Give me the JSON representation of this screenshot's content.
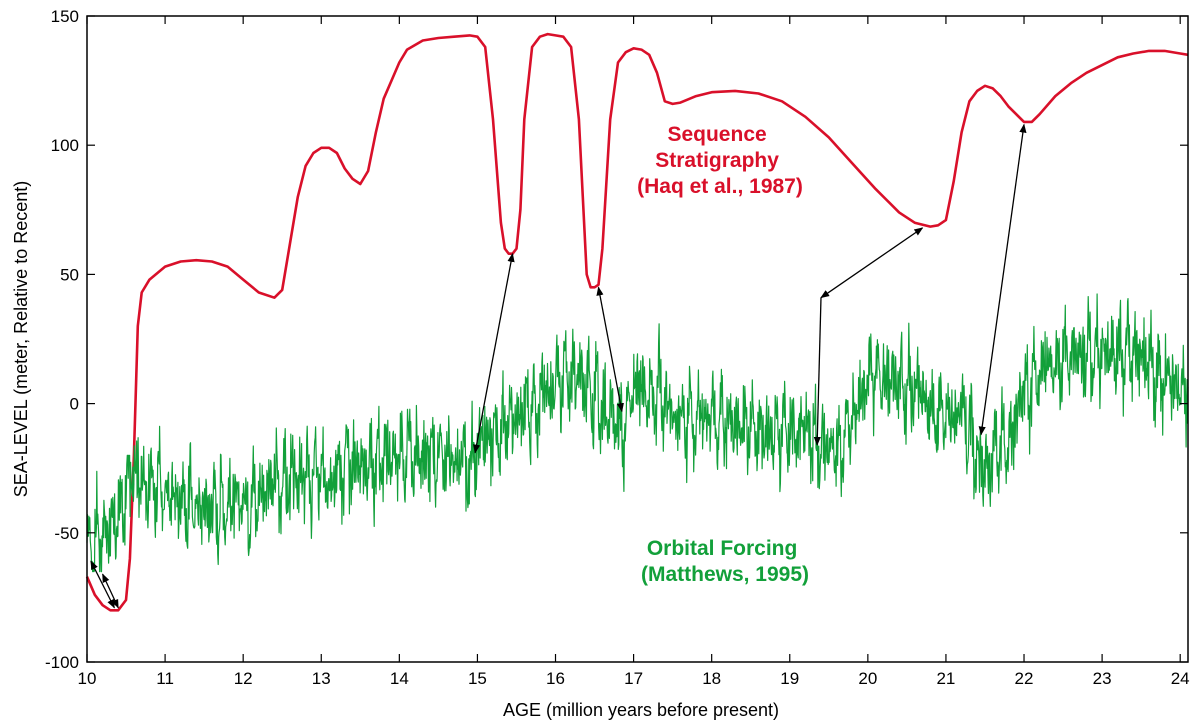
{
  "chart_data": {
    "type": "line",
    "title": "",
    "xlabel": "AGE (million years before present)",
    "ylabel": "SEA-LEVEL  (meter, Relative to Recent)",
    "xlim": [
      10,
      24.1
    ],
    "ylim": [
      -100,
      150
    ],
    "x_ticks": [
      10,
      11,
      12,
      13,
      14,
      15,
      16,
      17,
      18,
      19,
      20,
      21,
      22,
      23,
      24
    ],
    "y_ticks": [
      -100,
      -50,
      0,
      50,
      100,
      150
    ],
    "grid": false,
    "series": [
      {
        "name": "Sequence Stratigraphy (Haq et al., 1987)",
        "label_lines": [
          "Sequence",
          "Stratigraphy",
          "(Haq et al., 1987)"
        ],
        "color": "#d9102a",
        "x": [
          10.0,
          10.1,
          10.2,
          10.3,
          10.4,
          10.5,
          10.55,
          10.6,
          10.65,
          10.7,
          10.8,
          11.0,
          11.2,
          11.4,
          11.6,
          11.8,
          12.0,
          12.2,
          12.4,
          12.5,
          12.6,
          12.7,
          12.8,
          12.9,
          13.0,
          13.1,
          13.2,
          13.3,
          13.4,
          13.5,
          13.6,
          13.7,
          13.8,
          13.9,
          14.0,
          14.1,
          14.3,
          14.5,
          14.7,
          14.9,
          15.0,
          15.1,
          15.2,
          15.3,
          15.35,
          15.4,
          15.45,
          15.5,
          15.55,
          15.6,
          15.7,
          15.8,
          15.9,
          16.0,
          16.1,
          16.2,
          16.3,
          16.35,
          16.4,
          16.45,
          16.5,
          16.55,
          16.6,
          16.7,
          16.8,
          16.9,
          17.0,
          17.1,
          17.2,
          17.3,
          17.4,
          17.5,
          17.6,
          17.8,
          18.0,
          18.3,
          18.6,
          18.9,
          19.2,
          19.5,
          19.8,
          20.1,
          20.4,
          20.6,
          20.8,
          20.9,
          21.0,
          21.1,
          21.2,
          21.3,
          21.4,
          21.5,
          21.6,
          21.7,
          21.8,
          21.9,
          22.0,
          22.1,
          22.2,
          22.4,
          22.6,
          22.8,
          23.0,
          23.2,
          23.4,
          23.6,
          23.8,
          24.0,
          24.1
        ],
        "y": [
          -67,
          -74,
          -78,
          -80,
          -80,
          -76,
          -60,
          -20,
          30,
          43,
          48,
          53,
          55,
          55.5,
          55,
          53,
          48,
          43,
          41,
          44,
          62,
          80,
          92,
          97,
          99,
          99,
          97,
          91,
          87,
          85,
          90,
          105,
          118,
          125,
          132,
          137,
          140.5,
          141.5,
          142,
          142.5,
          142,
          138,
          110,
          70,
          60,
          58,
          58,
          60,
          75,
          110,
          138,
          142,
          143,
          142.5,
          142,
          138,
          110,
          80,
          50,
          45,
          45,
          46,
          60,
          110,
          132,
          136,
          137.5,
          137,
          135,
          128,
          117,
          116,
          116.5,
          119,
          120.5,
          121,
          120,
          117,
          111,
          103,
          93,
          83,
          74,
          70,
          68.5,
          69,
          71,
          86,
          105,
          117,
          121,
          123,
          122,
          119,
          115,
          112,
          109,
          109,
          112,
          119,
          124,
          128,
          131,
          134,
          135.5,
          136.5,
          136.5,
          135.5,
          135
        ]
      },
      {
        "name": "Orbital Forcing (Matthews, 1995)",
        "label_lines": [
          "Orbital Forcing",
          "(Matthews, 1995)"
        ],
        "color": "#12a03a",
        "seed": 17,
        "x_step": 0.006,
        "amp": 13,
        "fast_amp": 6,
        "period_myr": 0.1,
        "x": [
          10.0,
          10.2,
          10.35,
          10.45,
          10.55,
          10.6,
          10.7,
          11.0,
          11.5,
          12.0,
          12.5,
          13.0,
          13.5,
          14.0,
          14.5,
          14.9,
          15.1,
          15.4,
          15.7,
          16.0,
          16.3,
          16.6,
          16.85,
          17.0,
          17.3,
          17.6,
          18.0,
          18.4,
          18.8,
          19.2,
          19.4,
          19.6,
          19.8,
          20.0,
          20.3,
          20.6,
          20.9,
          21.2,
          21.45,
          21.8,
          22.0,
          22.3,
          22.6,
          23.0,
          23.4,
          23.8,
          24.1
        ],
        "y": [
          -55,
          -50,
          -48,
          -40,
          -28,
          -22,
          -30,
          -35,
          -40,
          -38,
          -30,
          -28,
          -23,
          -20,
          -20,
          -25,
          -15,
          -8,
          0,
          8,
          10,
          0,
          -10,
          5,
          5,
          -5,
          -5,
          -10,
          -12,
          -10,
          -15,
          -20,
          -5,
          10,
          10,
          5,
          -5,
          -5,
          -25,
          -15,
          5,
          15,
          18,
          20,
          20,
          10,
          5
        ]
      }
    ],
    "arrows": [
      {
        "from": [
          10.35,
          -79
        ],
        "to": [
          10.05,
          -61
        ]
      },
      {
        "from": [
          10.2,
          -66
        ],
        "to": [
          10.4,
          -79
        ]
      },
      {
        "from": [
          14.97,
          -19
        ],
        "to": [
          15.45,
          58
        ]
      },
      {
        "from": [
          16.55,
          45
        ],
        "to": [
          16.85,
          -3
        ]
      },
      {
        "from": [
          19.35,
          -16
        ],
        "to": [
          19.4,
          41
        ],
        "head": false
      },
      {
        "from": [
          19.4,
          41
        ],
        "to": [
          20.7,
          68
        ]
      },
      {
        "from": [
          22.0,
          108
        ],
        "to": [
          21.45,
          -12
        ]
      }
    ]
  }
}
